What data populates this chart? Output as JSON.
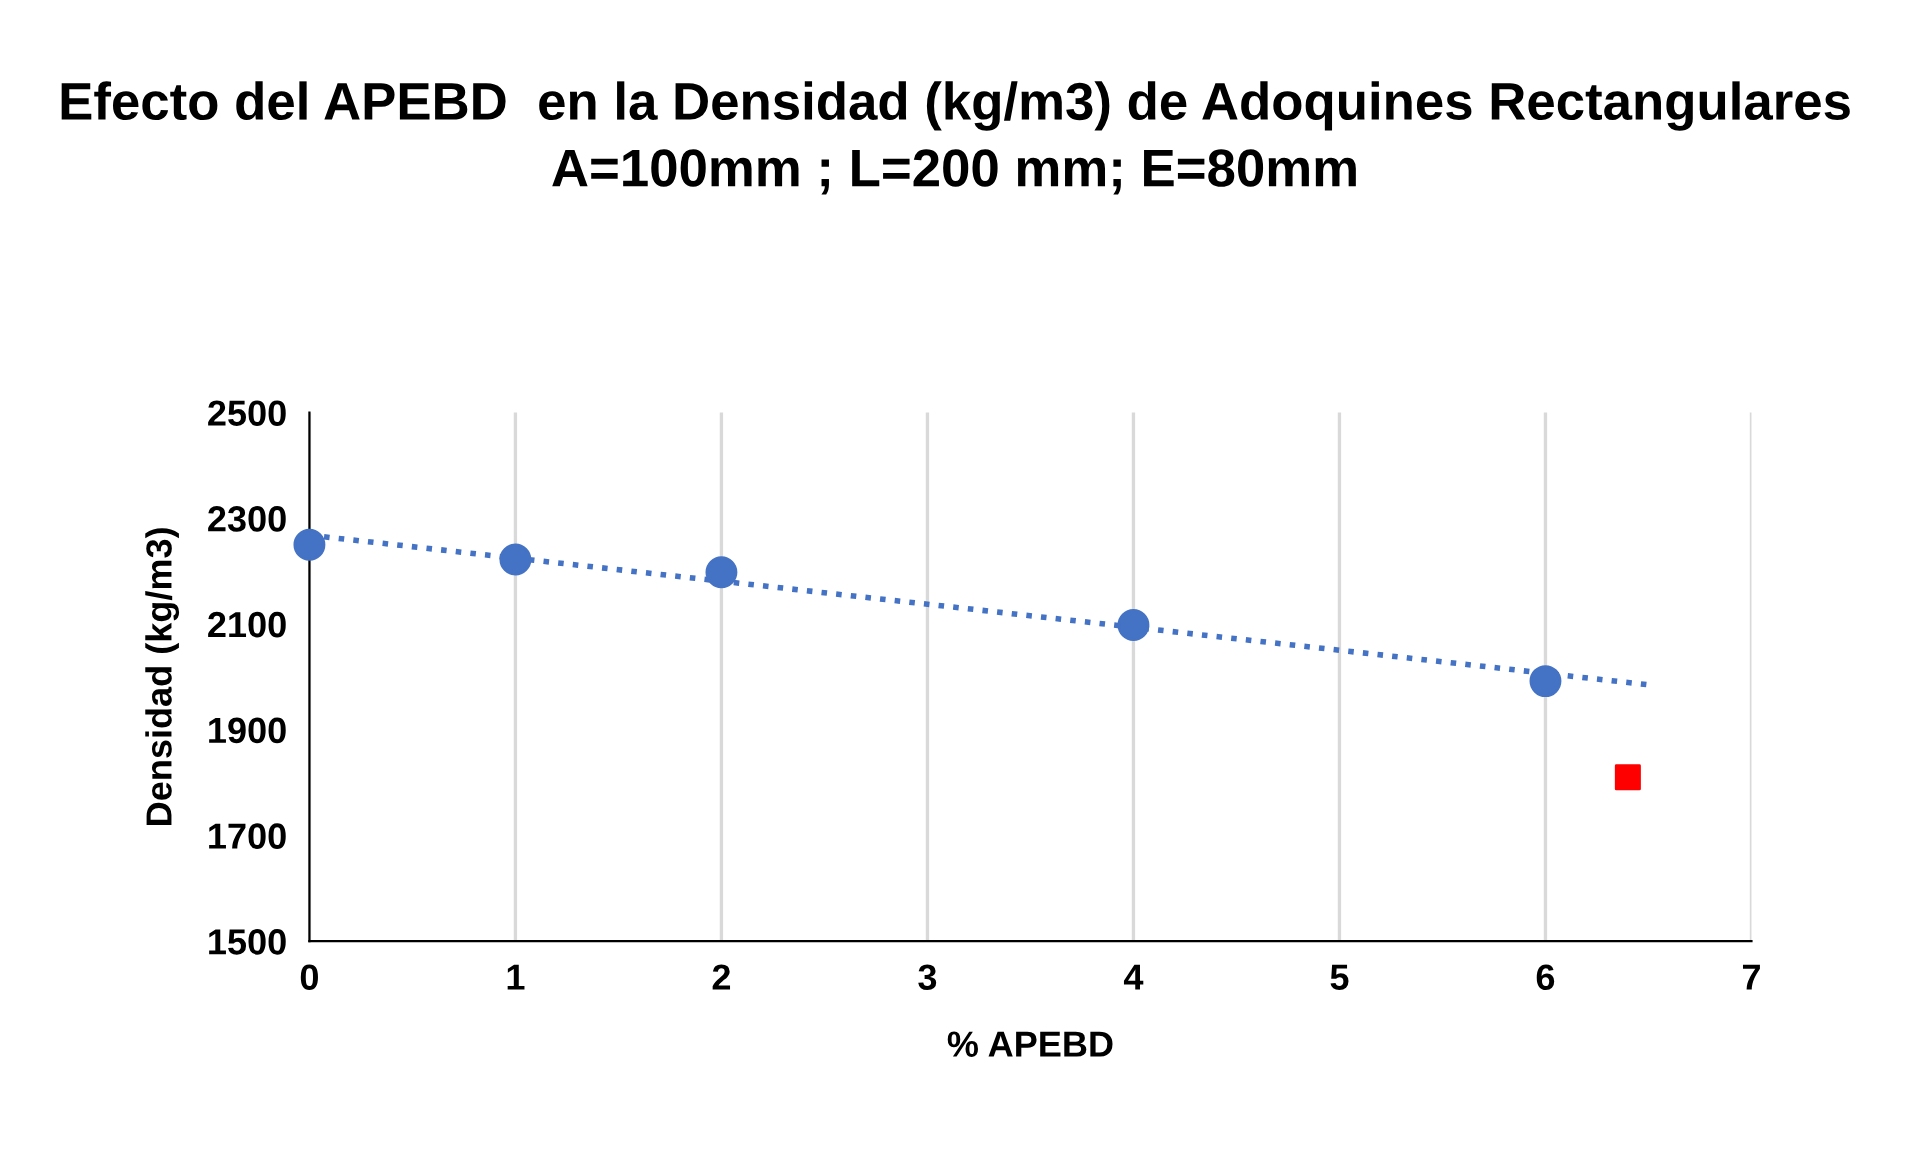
{
  "chart_data": {
    "type": "scatter",
    "title": "Efecto del APEBD  en la Densidad (kg/m3) de Adoquines Rectangulares A=100mm ; L=200 mm; E=80mm",
    "xlabel": "% APEBD",
    "ylabel": "Densidad (kg/m3)",
    "series": [
      {
        "color": "#4472c4",
        "marker": "circle",
        "x": [
          0,
          1,
          2,
          4,
          6
        ],
        "values": [
          2250,
          2222,
          2198,
          2098,
          1992
        ]
      },
      {
        "color": "#ff0000",
        "marker": "square",
        "x": [
          6.4
        ],
        "values": [
          1810
        ]
      },
      {
        "type": "line",
        "color": "#4472c4",
        "line_style": "dotted",
        "marker": "none",
        "x": [
          0,
          6.5
        ],
        "values": [
          2268,
          1985
        ]
      }
    ],
    "xlim": [
      0,
      7
    ],
    "xticks": [
      0,
      1,
      2,
      3,
      4,
      5,
      6,
      7
    ],
    "ylim": [
      1500,
      2500
    ],
    "yticks": [
      1500,
      1700,
      1900,
      2100,
      2300,
      2500
    ],
    "grid": "x",
    "legend": false
  }
}
